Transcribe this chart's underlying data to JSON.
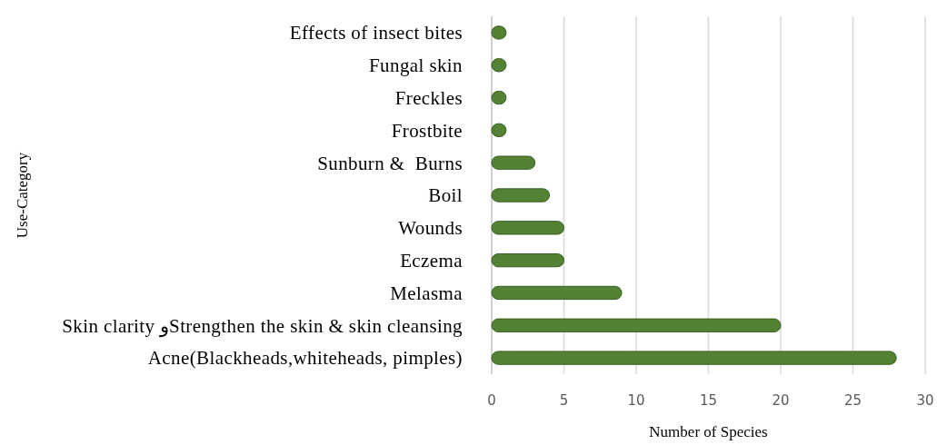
{
  "chart_data": {
    "type": "bar",
    "orientation": "horizontal",
    "xlabel": "Number of Species",
    "ylabel": "Use-Category",
    "categories": [
      "Effects of insect bites",
      "Fungal skin",
      "Freckles",
      "Frostbite",
      "Sunburn &  Burns",
      "Boil",
      "Wounds",
      "Eczema",
      "Melasma",
      "Skin clarity وStrengthen the skin & skin cleansing",
      "Acne(Blackheads,whiteheads, pimples)"
    ],
    "values": [
      1,
      1,
      1,
      1,
      3,
      4,
      5,
      5,
      9,
      20,
      28
    ],
    "color": "#548235",
    "xlim": [
      0,
      30
    ],
    "xticks": [
      0,
      5,
      10,
      15,
      20,
      25,
      30
    ],
    "grid": "x"
  }
}
